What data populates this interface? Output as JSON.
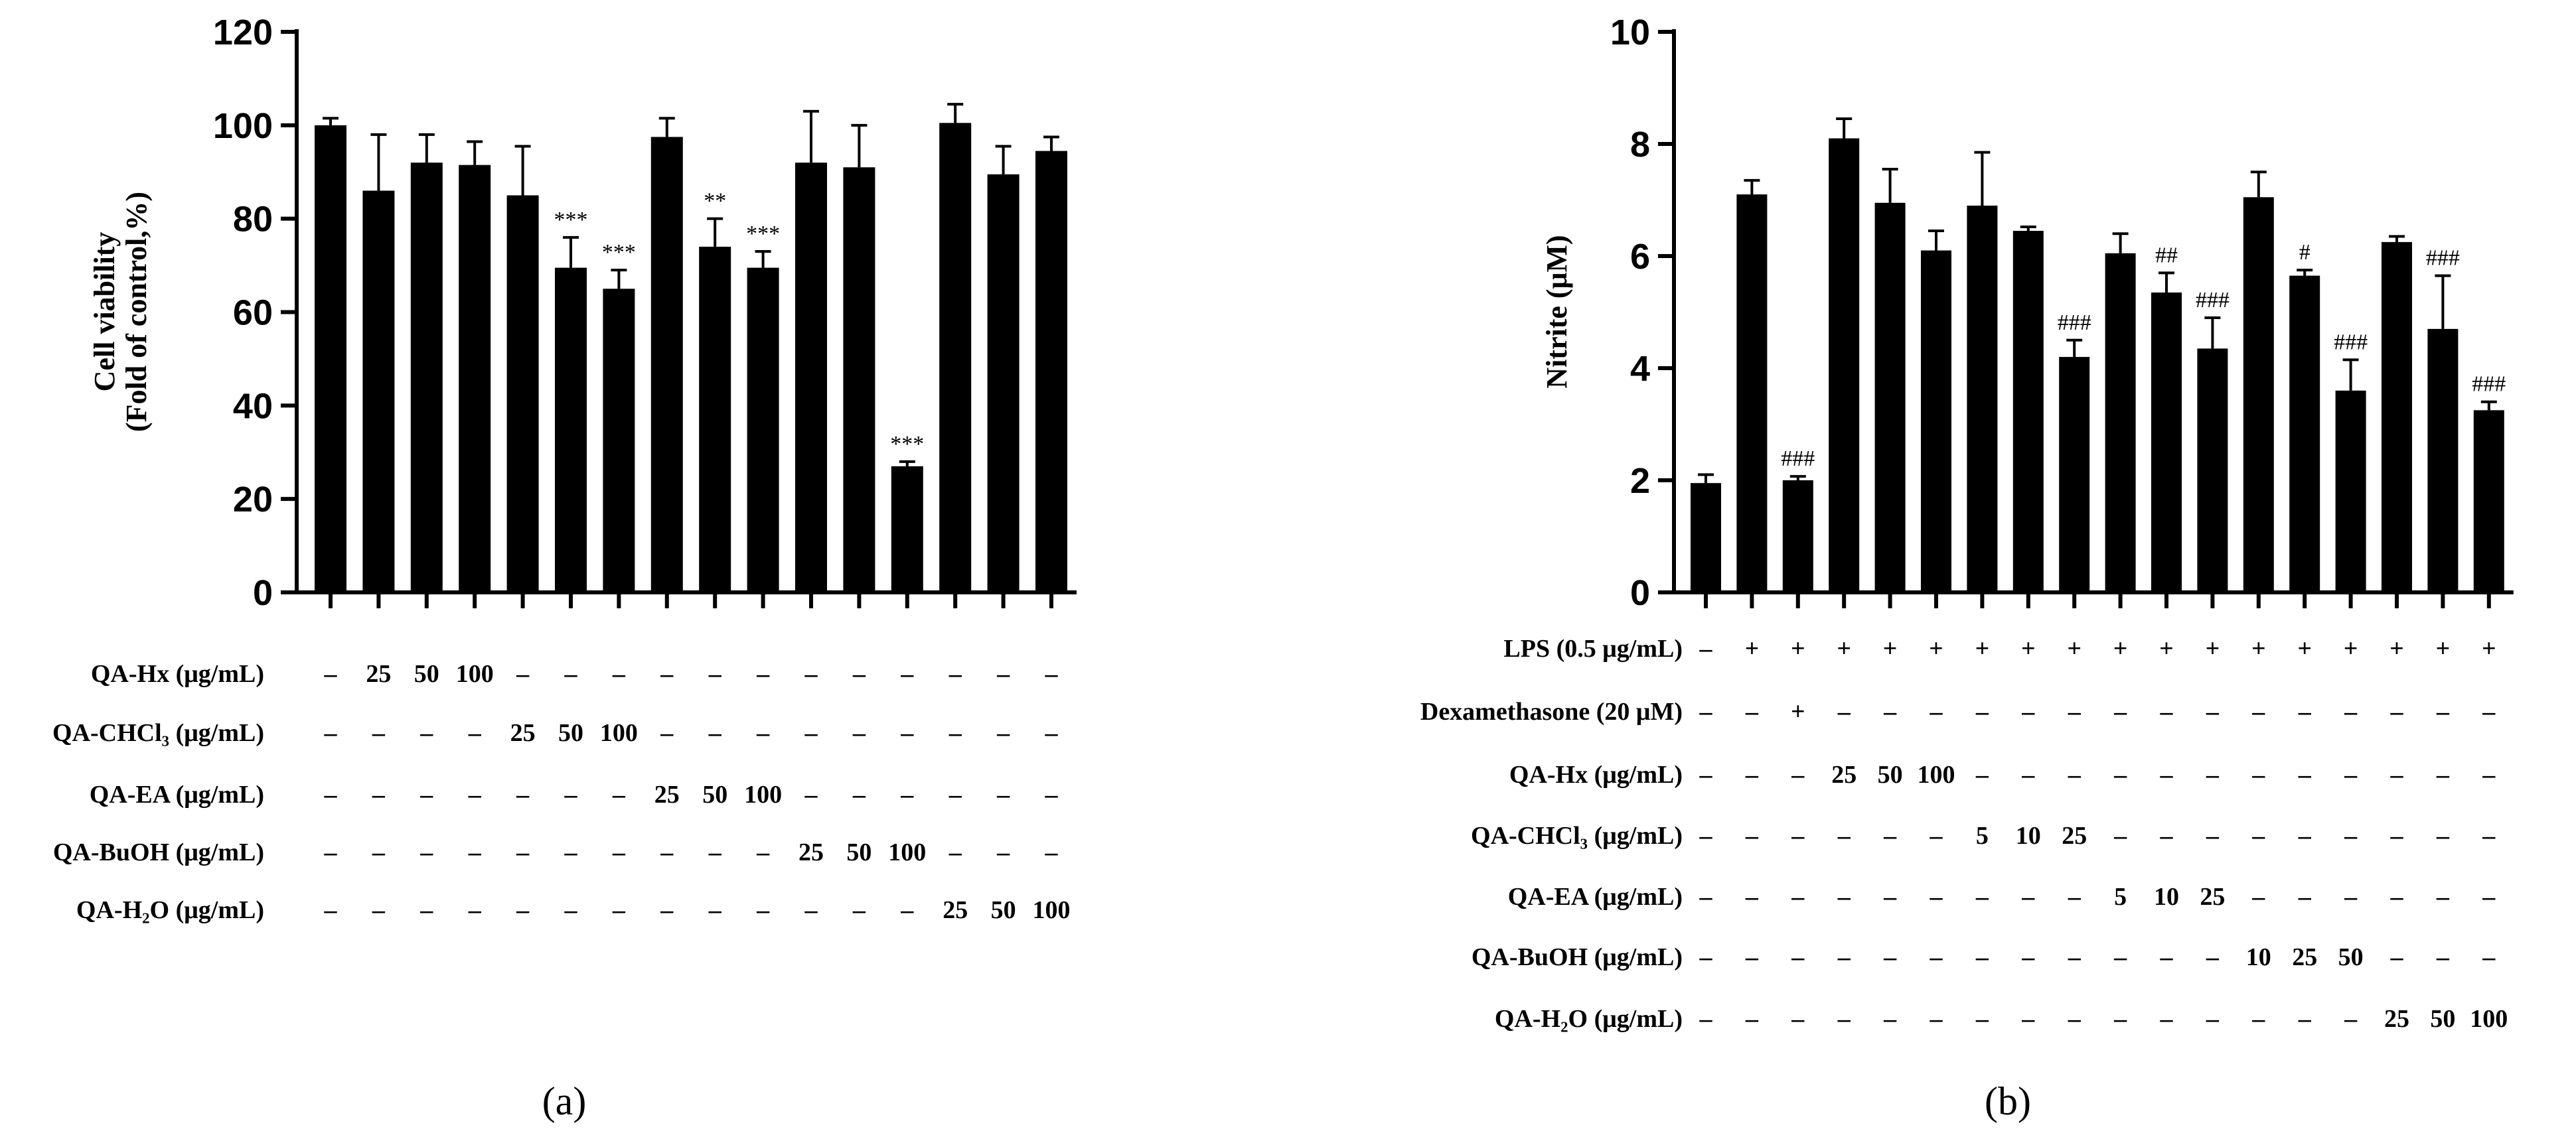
{
  "chart_data": [
    {
      "type": "bar",
      "panel_label": "(a)",
      "ylabel_line1": "Cell viability",
      "ylabel_line2": "(Fold of control,%)",
      "ylim": [
        0,
        120
      ],
      "yticks": [
        "0",
        "20",
        "40",
        "60",
        "80",
        "100",
        "120"
      ],
      "values": [
        100,
        86,
        92,
        91.5,
        85,
        69.5,
        65,
        97.5,
        74,
        69.5,
        92,
        91,
        27,
        100.5,
        89.5,
        94.5
      ],
      "errors": [
        1.5,
        12,
        6,
        5,
        10.5,
        6.5,
        4,
        4,
        6,
        3.5,
        11,
        9,
        1,
        4,
        6,
        3
      ],
      "significance": [
        "",
        "",
        "",
        "",
        "",
        "***",
        "***",
        "",
        "**",
        "***",
        "",
        "",
        "***",
        "",
        "",
        ""
      ],
      "table_rows": [
        {
          "label": "QA-Hx (μg/mL)",
          "cells": [
            "–",
            "25",
            "50",
            "100",
            "–",
            "–",
            "–",
            "–",
            "–",
            "–",
            "–",
            "–",
            "–",
            "–",
            "–",
            "–"
          ]
        },
        {
          "label": "QA-CHCl₃ (μg/mL)",
          "cells": [
            "–",
            "–",
            "–",
            "–",
            "25",
            "50",
            "100",
            "–",
            "–",
            "–",
            "–",
            "–",
            "–",
            "–",
            "–",
            "–"
          ]
        },
        {
          "label": "QA-EA (μg/mL)",
          "cells": [
            "–",
            "–",
            "–",
            "–",
            "–",
            "–",
            "–",
            "25",
            "50",
            "100",
            "–",
            "–",
            "–",
            "–",
            "–",
            "–"
          ]
        },
        {
          "label": "QA-BuOH (μg/mL)",
          "cells": [
            "–",
            "–",
            "–",
            "–",
            "–",
            "–",
            "–",
            "–",
            "–",
            "–",
            "25",
            "50",
            "100",
            "–",
            "–",
            "–"
          ]
        },
        {
          "label": "QA-H₂O (μg/mL)",
          "cells": [
            "–",
            "–",
            "–",
            "–",
            "–",
            "–",
            "–",
            "–",
            "–",
            "–",
            "–",
            "–",
            "–",
            "25",
            "50",
            "100"
          ]
        }
      ]
    },
    {
      "type": "bar",
      "panel_label": "(b)",
      "ylabel": "Nitrite (μM)",
      "ylim": [
        0,
        10
      ],
      "yticks": [
        "0",
        "2",
        "4",
        "6",
        "8",
        "10"
      ],
      "values": [
        1.95,
        7.1,
        2.0,
        8.1,
        6.95,
        6.1,
        6.9,
        6.45,
        4.2,
        6.05,
        5.35,
        4.35,
        7.05,
        5.65,
        3.6,
        6.25,
        4.7,
        3.25
      ],
      "errors": [
        0.15,
        0.25,
        0.07,
        0.35,
        0.6,
        0.35,
        0.95,
        0.07,
        0.3,
        0.35,
        0.35,
        0.55,
        0.45,
        0.1,
        0.55,
        0.1,
        0.95,
        0.15
      ],
      "significance": [
        "",
        "",
        "###",
        "",
        "",
        "",
        "",
        "",
        "###",
        "",
        "##",
        "###",
        "",
        "#",
        "###",
        "",
        "###",
        "###"
      ],
      "table_rows": [
        {
          "label": "LPS (0.5 μg/mL)",
          "cells": [
            "–",
            "+",
            "+",
            "+",
            "+",
            "+",
            "+",
            "+",
            "+",
            "+",
            "+",
            "+",
            "+",
            "+",
            "+",
            "+",
            "+",
            "+"
          ]
        },
        {
          "label": "Dexamethasone (20 μM)",
          "cells": [
            "–",
            "–",
            "+",
            "–",
            "–",
            "–",
            "–",
            "–",
            "–",
            "–",
            "–",
            "–",
            "–",
            "–",
            "–",
            "–",
            "–",
            "–"
          ]
        },
        {
          "label": "QA-Hx (μg/mL)",
          "cells": [
            "–",
            "–",
            "–",
            "25",
            "50",
            "100",
            "–",
            "–",
            "–",
            "–",
            "–",
            "–",
            "–",
            "–",
            "–",
            "–",
            "–",
            "–"
          ]
        },
        {
          "label": "QA-CHCl₃ (μg/mL)",
          "cells": [
            "–",
            "–",
            "–",
            "–",
            "–",
            "–",
            "5",
            "10",
            "25",
            "–",
            "–",
            "–",
            "–",
            "–",
            "–",
            "–",
            "–",
            "–"
          ]
        },
        {
          "label": "QA-EA (μg/mL)",
          "cells": [
            "–",
            "–",
            "–",
            "–",
            "–",
            "–",
            "–",
            "–",
            "–",
            "5",
            "10",
            "25",
            "–",
            "–",
            "–",
            "–",
            "–",
            "–"
          ]
        },
        {
          "label": "QA-BuOH (μg/mL)",
          "cells": [
            "–",
            "–",
            "–",
            "–",
            "–",
            "–",
            "–",
            "–",
            "–",
            "–",
            "–",
            "–",
            "10",
            "25",
            "50",
            "–",
            "–",
            "–"
          ]
        },
        {
          "label": "QA-H₂O (μg/mL)",
          "cells": [
            "–",
            "–",
            "–",
            "–",
            "–",
            "–",
            "–",
            "–",
            "–",
            "–",
            "–",
            "–",
            "–",
            "–",
            "–",
            "25",
            "50",
            "100"
          ]
        }
      ]
    }
  ]
}
